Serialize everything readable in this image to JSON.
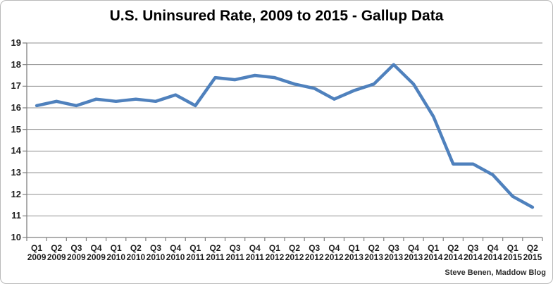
{
  "chart_data": {
    "type": "line",
    "title": "U.S. Uninsured Rate, 2009 to 2015 - Gallup Data",
    "attribution": "Steve Benen, Maddow Blog",
    "categories": [
      "Q1 2009",
      "Q2 2009",
      "Q3 2009",
      "Q4 2009",
      "Q1 2010",
      "Q2 2010",
      "Q3 2010",
      "Q4 2010",
      "Q1 2011",
      "Q2 2011",
      "Q3 2011",
      "Q4 2011",
      "Q1 2012",
      "Q2 2012",
      "Q3 2012",
      "Q4 2012",
      "Q1 2013",
      "Q2 2013",
      "Q3 2013",
      "Q4 2013",
      "Q1 2014",
      "Q2 2014",
      "Q3 2014",
      "Q4 2014",
      "Q1 2015",
      "Q2 2015"
    ],
    "values": [
      16.1,
      16.3,
      16.1,
      16.4,
      16.3,
      16.4,
      16.3,
      16.6,
      16.1,
      17.4,
      17.3,
      17.5,
      17.4,
      17.1,
      16.9,
      16.4,
      16.8,
      17.1,
      18.0,
      17.1,
      15.6,
      13.4,
      13.4,
      12.9,
      11.9,
      11.4
    ],
    "xlabel": "",
    "ylabel": "",
    "ylim": [
      10,
      19
    ],
    "yticks": [
      10,
      11,
      12,
      13,
      14,
      15,
      16,
      17,
      18,
      19
    ],
    "grid": "horizontal",
    "legend": "none",
    "line_color": "#4F81BD",
    "grid_color": "#919191",
    "axis_color": "#7f7f7f",
    "label_color": "#1f1f1f"
  }
}
